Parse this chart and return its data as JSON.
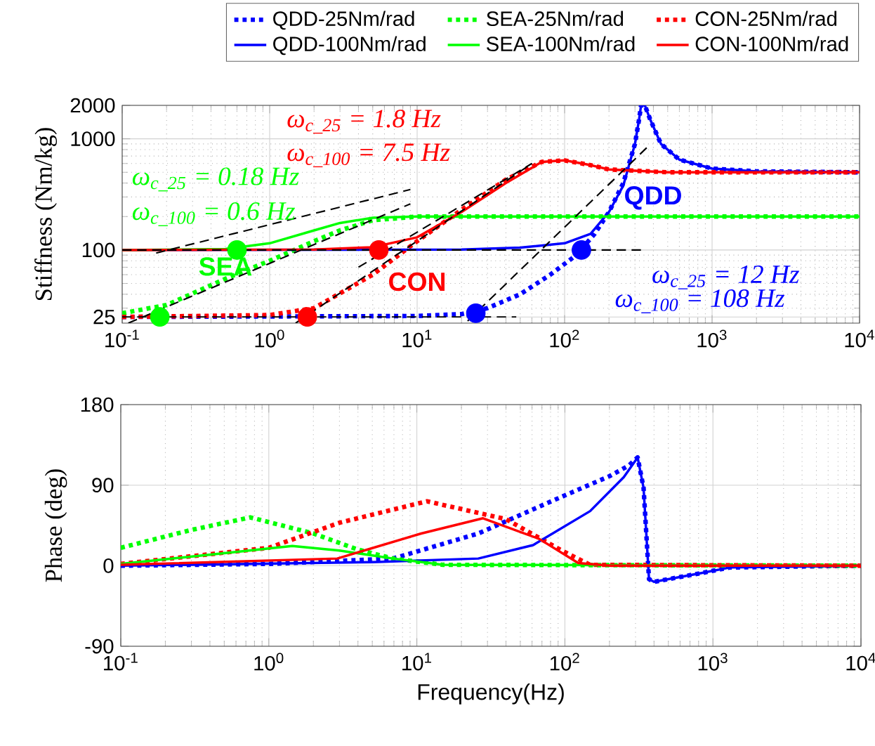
{
  "chart_data": [
    {
      "type": "line",
      "log": "xy",
      "xlim": [
        0.1,
        10000
      ],
      "ylim": [
        22,
        2000
      ],
      "xticks": [
        {
          "value": 0.1,
          "label": "10$^{-1}$"
        },
        {
          "value": 1,
          "label": "10$^{0}$"
        },
        {
          "value": 10,
          "label": "10$^{1}$"
        },
        {
          "value": 100,
          "label": "10$^{2}$"
        },
        {
          "value": 1000,
          "label": "10$^{3}$"
        },
        {
          "value": 10000,
          "label": "10$^{4}$"
        }
      ],
      "yticks": [
        25,
        100,
        1000,
        2000
      ],
      "ylabel": "Stiffness (Nm/kg)",
      "grid": true,
      "legend": "top",
      "annotations": [
        "ω$_{c_25}$ = 1.8 Hz",
        "ω$_{c_100}$ = 7.5 Hz",
        "ω$_{c_25}$ = 0.18 Hz",
        "ω$_{c_100}$ = 0.6 Hz",
        "SEA",
        "CON",
        "QDD",
        "ω$_{c_25}$ = 12 Hz",
        "ω$_{c_100}$ = 108 Hz"
      ],
      "series": [
        {
          "name": "QDD-25Nm/rad",
          "color": "#0000ff",
          "line_style": "dotted",
          "x": [
            0.1,
            10,
            20,
            30,
            50,
            80,
            120,
            160,
            200,
            250,
            300,
            320,
            330,
            350,
            380,
            450,
            600,
            1000,
            2000,
            10000
          ],
          "values": [
            25,
            25.5,
            26.5,
            30,
            40,
            60,
            90,
            140,
            220,
            400,
            900,
            1500,
            2000,
            2000,
            1500,
            900,
            650,
            540,
            510,
            500
          ]
        },
        {
          "name": "SEA-25Nm/rad",
          "color": "#00ff00",
          "line_style": "dotted",
          "x": [
            0.1,
            0.2,
            0.5,
            1,
            2,
            3,
            5,
            10,
            10000
          ],
          "values": [
            27,
            32,
            55,
            80,
            120,
            150,
            185,
            200,
            200
          ]
        },
        {
          "name": "CON-25Nm/rad",
          "color": "#ff0000",
          "line_style": "dotted",
          "x": [
            0.1,
            1,
            2,
            5,
            10,
            20,
            40,
            70,
            100,
            150,
            200,
            500,
            10000
          ],
          "values": [
            25,
            26,
            30,
            60,
            120,
            230,
            430,
            620,
            640,
            580,
            530,
            500,
            500
          ]
        },
        {
          "name": "QDD-100Nm/rad",
          "color": "#0000ff",
          "line_style": "solid",
          "x": [
            0.1,
            20,
            50,
            100,
            150,
            200,
            250,
            300,
            320,
            330,
            350,
            380,
            450,
            600,
            1000,
            2000,
            10000
          ],
          "values": [
            100,
            101,
            105,
            115,
            140,
            220,
            380,
            900,
            1500,
            2000,
            2000,
            1500,
            900,
            650,
            540,
            510,
            500
          ]
        },
        {
          "name": "SEA-100Nm/rad",
          "color": "#00ff00",
          "line_style": "solid",
          "x": [
            0.1,
            0.5,
            1,
            2,
            3,
            5,
            10,
            10000
          ],
          "values": [
            100,
            102,
            115,
            150,
            175,
            195,
            200,
            200
          ]
        },
        {
          "name": "CON-100Nm/rad",
          "color": "#ff0000",
          "line_style": "solid",
          "x": [
            0.1,
            2,
            5,
            10,
            20,
            40,
            70,
            100,
            150,
            200,
            500,
            10000
          ],
          "values": [
            100,
            101,
            106,
            130,
            220,
            400,
            620,
            640,
            580,
            530,
            500,
            500
          ]
        },
        {
          "type": "line",
          "color": "#000000",
          "line_style": "dashed",
          "x": [
            0.1,
            47
          ],
          "values": [
            25,
            25
          ]
        },
        {
          "type": "line",
          "color": "#000000",
          "line_style": "dashed",
          "x": [
            0.1,
            340
          ],
          "values": [
            100,
            100
          ]
        },
        {
          "type": "line",
          "color": "#000000",
          "line_style": "dashed",
          "x": [
            0.11,
            9
          ],
          "values": [
            22,
            260
          ]
        },
        {
          "type": "line",
          "color": "#000000",
          "line_style": "dashed",
          "x": [
            0.17,
            9
          ],
          "values": [
            94,
            350
          ]
        },
        {
          "type": "line",
          "color": "#000000",
          "line_style": "dashed",
          "x": [
            1.5,
            60
          ],
          "values": [
            22,
            600
          ]
        },
        {
          "type": "line",
          "color": "#000000",
          "line_style": "dashed",
          "x": [
            4,
            60
          ],
          "values": [
            70,
            600
          ]
        },
        {
          "type": "line",
          "color": "#000000",
          "line_style": "dashed",
          "x": [
            22,
            380
          ],
          "values": [
            23,
            890
          ]
        },
        {
          "type": "scatter",
          "color": "#00ff00",
          "marker": "circle",
          "x": [
            0.18,
            0.6
          ],
          "values": [
            25,
            100
          ]
        },
        {
          "type": "scatter",
          "color": "#ff0000",
          "marker": "circle",
          "x": [
            1.8,
            5.5
          ],
          "values": [
            25,
            100
          ]
        },
        {
          "type": "scatter",
          "color": "#0000ff",
          "marker": "circle",
          "x": [
            25,
            130
          ],
          "values": [
            27,
            100
          ]
        }
      ]
    },
    {
      "type": "line",
      "log": "x",
      "xlim": [
        0.1,
        10000
      ],
      "ylim": [
        -90,
        180
      ],
      "xticks": [
        {
          "value": 0.1,
          "label": "10$^{-1}$"
        },
        {
          "value": 1,
          "label": "10$^{0}$"
        },
        {
          "value": 10,
          "label": "10$^{1}$"
        },
        {
          "value": 100,
          "label": "10$^{2}$"
        },
        {
          "value": 1000,
          "label": "10$^{3}$"
        },
        {
          "value": 10000,
          "label": "10$^{4}$"
        }
      ],
      "yticks": [
        -90,
        0,
        90,
        180
      ],
      "xlabel": "Frequency(Hz)",
      "ylabel": "Phase (deg)",
      "grid": true,
      "series": [
        {
          "color": "#0000ff",
          "line_style": "dotted",
          "x": [
            0.1,
            1,
            6.9,
            26,
            95,
            200,
            271,
            310,
            340,
            370,
            400,
            850,
            1300,
            10000
          ],
          "values": [
            0,
            2,
            8,
            36,
            77,
            100,
            112,
            121,
            87,
            -15,
            -18,
            -8,
            -2,
            0
          ]
        },
        {
          "color": "#00ff00",
          "line_style": "dotted",
          "x": [
            0.1,
            0.3,
            0.75,
            2,
            4,
            6.9,
            15,
            10000
          ],
          "values": [
            20,
            40,
            54,
            36,
            18,
            8,
            1,
            0
          ]
        },
        {
          "color": "#ff0000",
          "line_style": "dotted",
          "x": [
            0.1,
            1,
            3,
            11.7,
            40,
            95,
            148,
            10000
          ],
          "values": [
            2,
            20,
            48,
            72,
            52,
            17,
            1,
            0
          ]
        },
        {
          "color": "#0000ff",
          "line_style": "solid",
          "x": [
            0.1,
            5,
            26,
            61,
            148,
            250,
            310,
            340,
            370,
            400,
            850,
            1300,
            10000
          ],
          "values": [
            0,
            4,
            8,
            23,
            61,
            99,
            121,
            87,
            -15,
            -18,
            -8,
            -2,
            0
          ]
        },
        {
          "color": "#00ff00",
          "line_style": "solid",
          "x": [
            0.1,
            0.5,
            1.44,
            3,
            6.9,
            15,
            10000
          ],
          "values": [
            2,
            14,
            22,
            17,
            8,
            1,
            0
          ]
        },
        {
          "color": "#ff0000",
          "line_style": "solid",
          "x": [
            0.1,
            2.9,
            10.7,
            28,
            67,
            123,
            200,
            10000
          ],
          "values": [
            1,
            8,
            36,
            53,
            30,
            3,
            0,
            0
          ]
        }
      ]
    }
  ]
}
